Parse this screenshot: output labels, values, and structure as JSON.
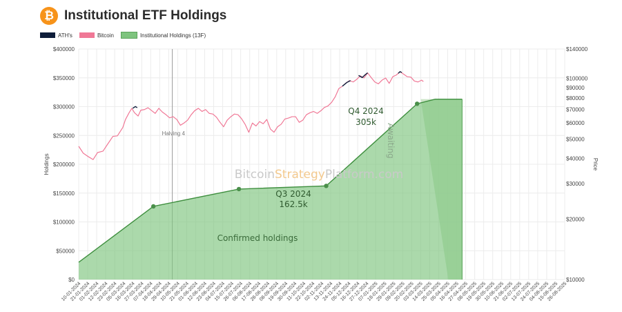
{
  "header": {
    "title": "Institutional ETF Holdings",
    "logo_glyph": "₿"
  },
  "legend": [
    {
      "label": "ATH's",
      "color": "#0e1d3a"
    },
    {
      "label": "Bitcoin",
      "color": "#f07896"
    },
    {
      "label": "Institutional Holdings (13F)",
      "color": "#7ec47e"
    }
  ],
  "watermark": {
    "part1": "Bitcoin",
    "part2": "Strategy",
    "part3": "Platform.com"
  },
  "chart_data": {
    "type": "area",
    "ylabel_left": "Holdings",
    "ylabel_right": "Price",
    "left_axis": {
      "min": 0,
      "max": 400000,
      "ticks": [
        0,
        50000,
        100000,
        150000,
        200000,
        250000,
        300000,
        350000,
        400000
      ],
      "tick_labels": [
        "$0",
        "$50000",
        "$100000",
        "$150000",
        "$200000",
        "$250000",
        "$300000",
        "$350000",
        "$400000"
      ]
    },
    "right_axis": {
      "scale": "log",
      "min": 10000,
      "max": 140000,
      "ticks": [
        10000,
        20000,
        30000,
        40000,
        50000,
        60000,
        70000,
        80000,
        90000,
        100000,
        140000
      ],
      "tick_labels": [
        "$10000",
        "$20000",
        "$30000",
        "$40000",
        "$50000",
        "$60000",
        "$70000",
        "$80000",
        "$90000",
        "$100000",
        "$140000"
      ]
    },
    "x_labels": [
      "10-01-2024",
      "21-01-2024",
      "01-02-2024",
      "12-02-2024",
      "23-02-2024",
      "05-03-2024",
      "16-03-2024",
      "27-03-2024",
      "07-04-2024",
      "18-04-2024",
      "29-04-2024",
      "10-05-2024",
      "21-05-2024",
      "01-06-2024",
      "12-06-2024",
      "23-06-2024",
      "04-07-2024",
      "15-07-2024",
      "26-07-2024",
      "06-08-2024",
      "17-08-2024",
      "28-08-2024",
      "08-09-2024",
      "19-09-2024",
      "30-09-2024",
      "11-10-2024",
      "22-10-2024",
      "02-11-2024",
      "13-11-2024",
      "24-11-2024",
      "05-12-2024",
      "16-12-2024",
      "27-12-2024",
      "07-01-2025",
      "18-01-2025",
      "29-01-2025",
      "09-02-2025",
      "20-02-2025",
      "03-03-2025",
      "14-03-2025",
      "25-03-2025",
      "05-04-2025",
      "16-04-2025",
      "27-04-2025",
      "08-05-2025",
      "19-05-2025",
      "30-05-2025",
      "10-06-2025",
      "21-06-2025",
      "02-07-2025",
      "13-07-2025",
      "24-07-2025",
      "04-08-2025",
      "15-08-2025",
      "26-08-2025"
    ],
    "holdings": [
      {
        "date_index": 0,
        "value": 30000
      },
      {
        "date_index": 8.3,
        "value": 127000
      },
      {
        "date_index": 17.8,
        "value": 157000,
        "marker": true
      },
      {
        "date_index": 27.5,
        "value": 162500,
        "marker": true
      },
      {
        "date_index": 37.6,
        "value": 305000,
        "marker": true
      },
      {
        "date_index": 39.6,
        "value": 313000
      },
      {
        "date_index": 42.6,
        "value": 313000
      }
    ],
    "awaiting_region": {
      "from_index": 38.0,
      "to_index": 42.6,
      "top_value": 313000
    },
    "halving": {
      "date_index": 10.4,
      "label": "Halving 4"
    },
    "annotations": [
      {
        "label_line1": "Q3 2024",
        "label_line2": "162.5k"
      },
      {
        "label_line1": "Q4 2024",
        "label_line2": "305k"
      },
      {
        "label_line1": "Awaiting"
      },
      {
        "label_line1": "Confirmed holdings"
      }
    ],
    "bitcoin_price": [
      [
        0,
        46000
      ],
      [
        0.5,
        42500
      ],
      [
        1,
        41000
      ],
      [
        1.6,
        39500
      ],
      [
        2.1,
        42800
      ],
      [
        2.7,
        43500
      ],
      [
        3.2,
        47000
      ],
      [
        3.8,
        51500
      ],
      [
        4.3,
        51800
      ],
      [
        4.9,
        57000
      ],
      [
        5.2,
        62500
      ],
      [
        5.6,
        67500
      ],
      [
        5.9,
        71000
      ],
      [
        6.2,
        67500
      ],
      [
        6.6,
        65000
      ],
      [
        6.9,
        69500
      ],
      [
        7.3,
        70000
      ],
      [
        7.7,
        71500
      ],
      [
        8.1,
        69200
      ],
      [
        8.5,
        67000
      ],
      [
        8.9,
        71000
      ],
      [
        9.3,
        68000
      ],
      [
        9.7,
        66000
      ],
      [
        10.1,
        63700
      ],
      [
        10.5,
        64500
      ],
      [
        10.9,
        62500
      ],
      [
        11.3,
        58500
      ],
      [
        11.7,
        60000
      ],
      [
        12.1,
        62000
      ],
      [
        12.5,
        66000
      ],
      [
        12.9,
        69200
      ],
      [
        13.3,
        71000
      ],
      [
        13.7,
        68500
      ],
      [
        14.1,
        70000
      ],
      [
        14.5,
        67000
      ],
      [
        14.9,
        66500
      ],
      [
        15.3,
        64200
      ],
      [
        15.7,
        60500
      ],
      [
        16.1,
        57500
      ],
      [
        16.5,
        62000
      ],
      [
        16.9,
        64500
      ],
      [
        17.3,
        66500
      ],
      [
        17.7,
        66000
      ],
      [
        18.1,
        63000
      ],
      [
        18.5,
        59000
      ],
      [
        18.9,
        54000
      ],
      [
        19.3,
        60000
      ],
      [
        19.7,
        58000
      ],
      [
        20.1,
        61000
      ],
      [
        20.5,
        59500
      ],
      [
        20.9,
        62500
      ],
      [
        21.3,
        56000
      ],
      [
        21.7,
        54000
      ],
      [
        22.1,
        57500
      ],
      [
        22.5,
        59200
      ],
      [
        22.9,
        62800
      ],
      [
        23.3,
        63500
      ],
      [
        23.7,
        64500
      ],
      [
        24.1,
        64500
      ],
      [
        24.5,
        60500
      ],
      [
        24.9,
        62000
      ],
      [
        25.3,
        66000
      ],
      [
        25.7,
        67500
      ],
      [
        26.1,
        68500
      ],
      [
        26.5,
        67000
      ],
      [
        26.9,
        69000
      ],
      [
        27.3,
        71700
      ],
      [
        27.7,
        73000
      ],
      [
        28.1,
        76000
      ],
      [
        28.5,
        81000
      ],
      [
        28.9,
        89000
      ],
      [
        29.3,
        91500
      ],
      [
        29.7,
        95000
      ],
      [
        30.1,
        97500
      ],
      [
        30.5,
        96000
      ],
      [
        30.9,
        99000
      ],
      [
        31.3,
        103000
      ],
      [
        31.7,
        100500
      ],
      [
        32.1,
        106500
      ],
      [
        32.5,
        101000
      ],
      [
        32.9,
        96000
      ],
      [
        33.3,
        94000
      ],
      [
        33.7,
        98000
      ],
      [
        34.1,
        100500
      ],
      [
        34.5,
        94500
      ],
      [
        34.9,
        102000
      ],
      [
        35.3,
        104000
      ],
      [
        35.7,
        108000
      ],
      [
        36.1,
        105000
      ],
      [
        36.5,
        102000
      ],
      [
        36.9,
        101500
      ],
      [
        37.3,
        97000
      ],
      [
        37.7,
        96000
      ],
      [
        38.1,
        98000
      ],
      [
        38.3,
        96500
      ]
    ],
    "ath_segments": [
      [
        [
          6.0,
          71000
        ],
        [
          6.3,
          72500
        ],
        [
          6.5,
          71500
        ]
      ],
      [
        [
          29.3,
          91500
        ],
        [
          29.8,
          95500
        ],
        [
          30.2,
          97500
        ]
      ],
      [
        [
          31.1,
          103500
        ],
        [
          31.5,
          101000
        ],
        [
          31.8,
          104000
        ],
        [
          32.1,
          106500
        ]
      ],
      [
        [
          35.5,
          106000
        ],
        [
          35.7,
          108000
        ],
        [
          35.9,
          107000
        ]
      ]
    ]
  }
}
